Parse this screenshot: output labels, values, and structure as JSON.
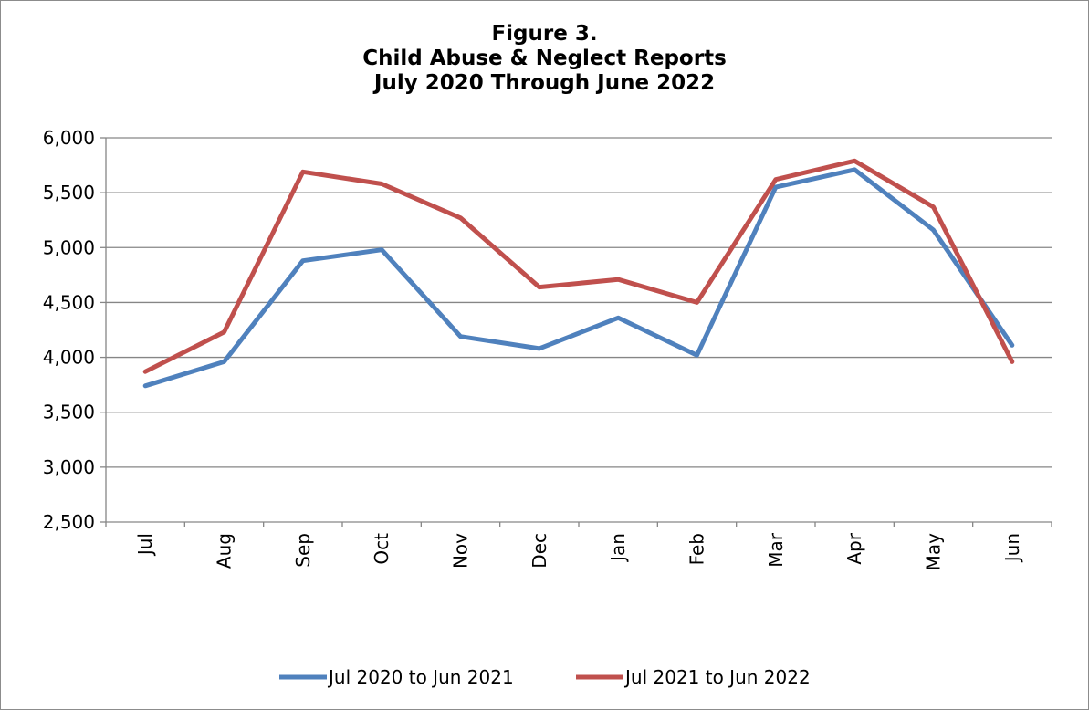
{
  "chart_data": {
    "type": "line",
    "title": [
      "Figure 3.",
      "Child Abuse & Neglect Reports",
      "July 2020 Through June 2022"
    ],
    "xlabel": "",
    "ylabel": "",
    "categories": [
      "Jul",
      "Aug",
      "Sep",
      "Oct",
      "Nov",
      "Dec",
      "Jan",
      "Feb",
      "Mar",
      "Apr",
      "May",
      "Jun"
    ],
    "ylim": [
      2500,
      6000
    ],
    "yticks": [
      2500,
      3000,
      3500,
      4000,
      4500,
      5000,
      5500,
      6000
    ],
    "ytick_labels": [
      "2,500",
      "3,000",
      "3,500",
      "4,000",
      "4,500",
      "5,000",
      "5,500",
      "6,000"
    ],
    "grid": true,
    "legend_position": "bottom",
    "series": [
      {
        "name": "Jul 2020 to Jun 2021",
        "color": "#4f81bd",
        "values": [
          3740,
          3960,
          4880,
          4980,
          4190,
          4080,
          4360,
          4020,
          5550,
          5710,
          5160,
          4110
        ]
      },
      {
        "name": "Jul 2021 to Jun 2022",
        "color": "#c0504d",
        "values": [
          3870,
          4230,
          5690,
          5580,
          5270,
          4640,
          4710,
          4500,
          5620,
          5790,
          5370,
          3960
        ]
      }
    ]
  }
}
